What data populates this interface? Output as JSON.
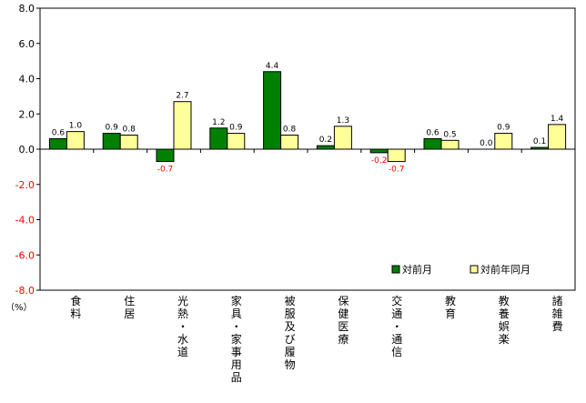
{
  "chart_data": {
    "type": "bar",
    "title": "",
    "xlabel": "",
    "ylabel": "",
    "unit_label": "（%）",
    "ylim": [
      -8.0,
      8.0
    ],
    "yticks": [
      8.0,
      6.0,
      4.0,
      2.0,
      0.0,
      -2.0,
      -4.0,
      -6.0,
      -8.0
    ],
    "ytick_labels": [
      "8.0",
      "6.0",
      "4.0",
      "2.0",
      "0.0",
      "-2.0",
      "-4.0",
      "-6.0",
      "-8.0"
    ],
    "categories": [
      "食料",
      "住居",
      "光熱・水道",
      "家具・家事用品",
      "被服及び履物",
      "保健医療",
      "交通・通信",
      "教育",
      "教養娯楽",
      "諸雑費"
    ],
    "series": [
      {
        "name": "対前月",
        "color": "#008000",
        "values": [
          0.6,
          0.9,
          -0.7,
          1.2,
          4.4,
          0.2,
          -0.2,
          0.6,
          0.0,
          0.1
        ],
        "labels": [
          "0.6",
          "0.9",
          "-0.7",
          "1.2",
          "4.4",
          "0.2",
          "-0.2",
          "0.6",
          "0.0",
          "0.1"
        ]
      },
      {
        "name": "対前年同月",
        "color": "#ffff99",
        "values": [
          1.0,
          0.8,
          2.7,
          0.9,
          0.8,
          1.3,
          -0.7,
          0.5,
          0.9,
          1.4
        ],
        "labels": [
          "1.0",
          "0.8",
          "2.7",
          "0.9",
          "0.8",
          "1.3",
          "-0.7",
          "0.5",
          "0.9",
          "1.4"
        ]
      }
    ],
    "negative_ytick_color": "#ff0000",
    "negative_label_color": "#ff0000",
    "legend_position": "bottom-right"
  }
}
